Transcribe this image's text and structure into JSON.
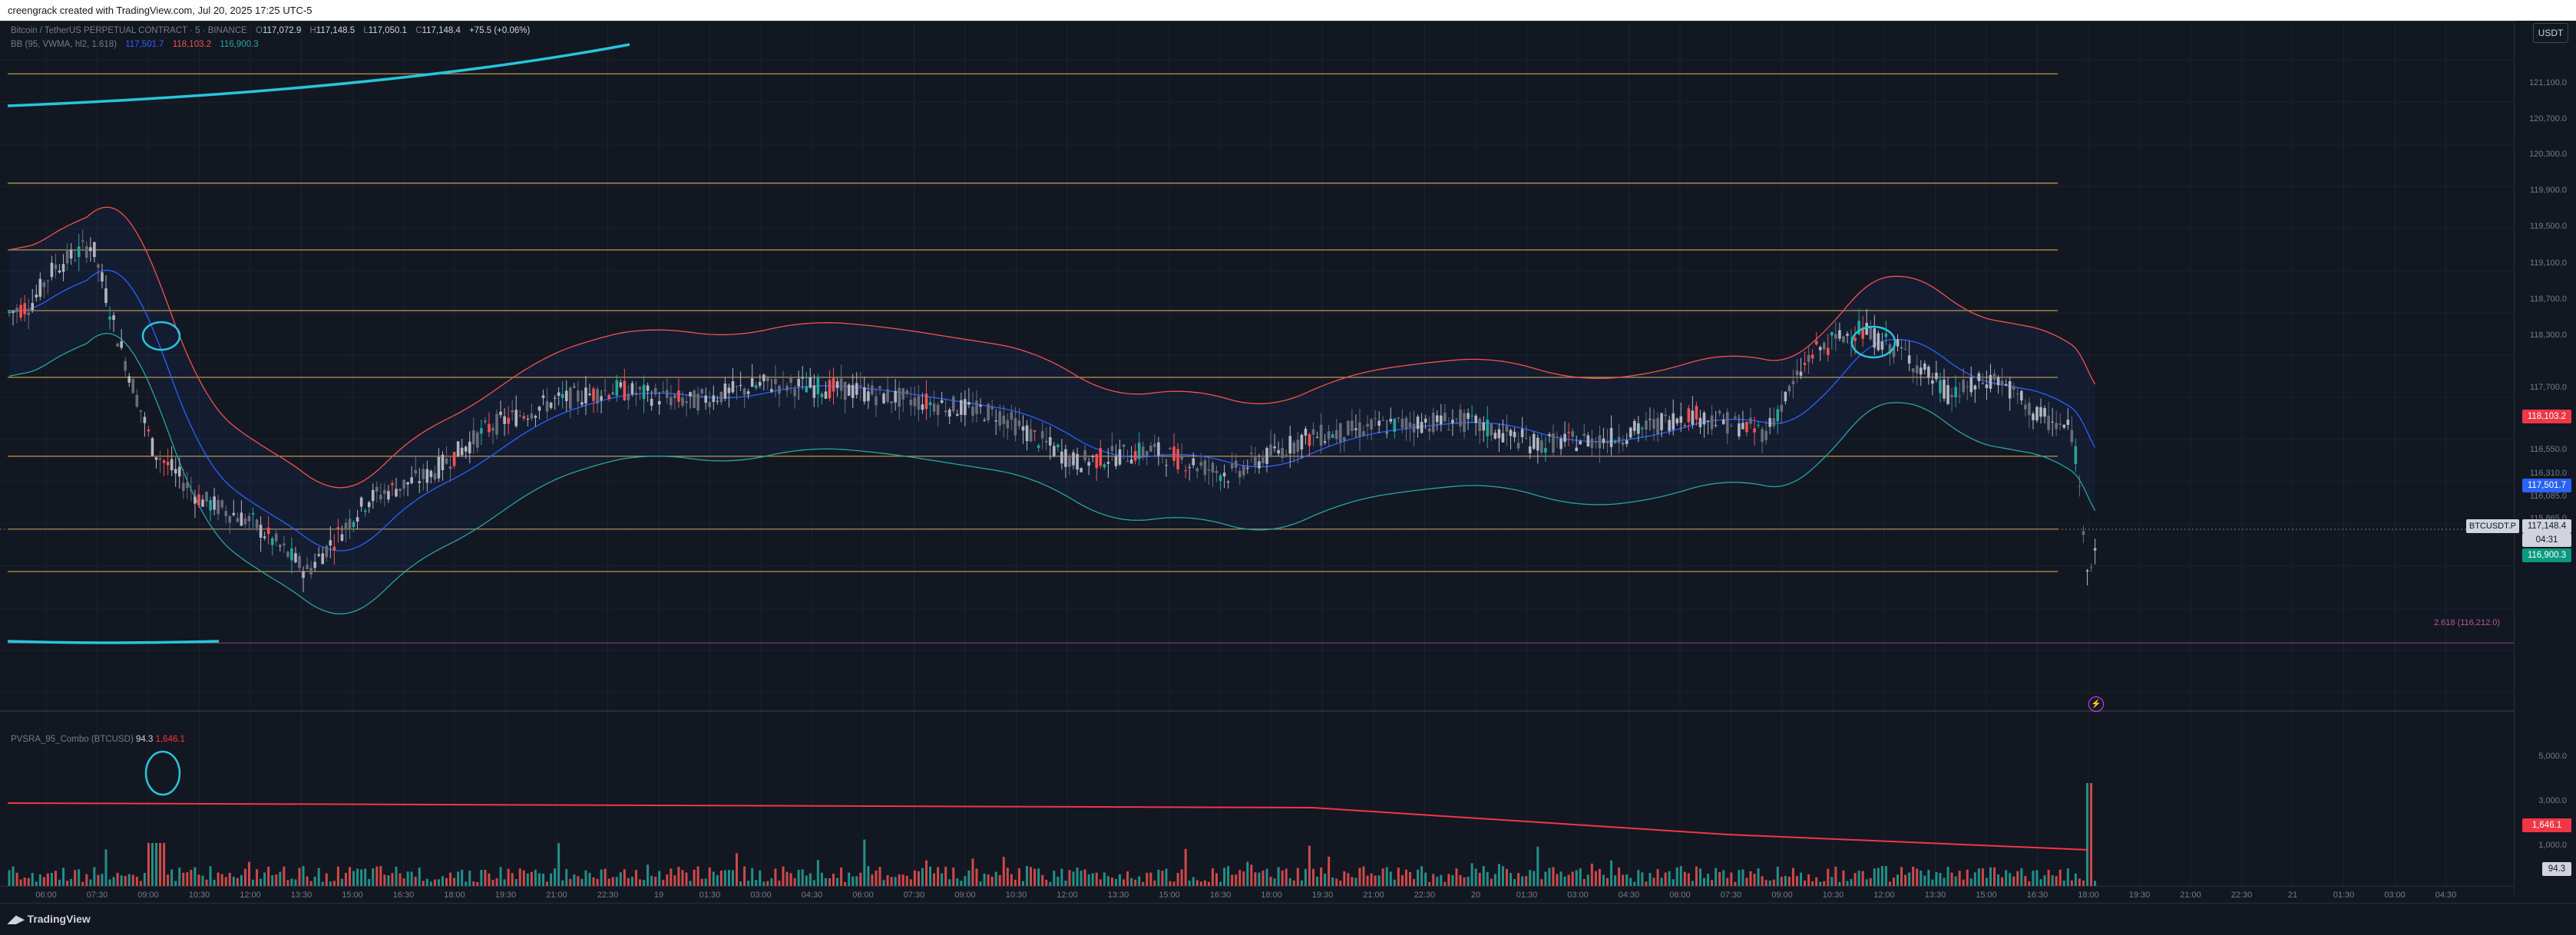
{
  "topbar": {
    "credit": "creengrack created with TradingView.com, Jul 20, 2025 17:25 UTC-5"
  },
  "legend": {
    "symbol": "Bitcoin / TetherUS PERPETUAL CONTRACT · 5 · BINANCE",
    "open": "117,072.9",
    "high": "117,148.5",
    "low": "117,050.1",
    "close": "117,148.4",
    "change": "+75.5 (+0.06%)",
    "bb_label": "BB (95, VWMA, hl2, 1.618)",
    "bb_basis": "117,501.7",
    "bb_upper": "118,103.2",
    "bb_lower": "116,900.3"
  },
  "volume_legend": {
    "name": "PVSRA_95_Combo (BTCUSD)",
    "value1": "94.3",
    "value2": "1,646.1"
  },
  "currency_button": "USDT",
  "price_axis": {
    "ticks": [
      "121,100.0",
      "120,700.0",
      "120,300.0",
      "119,900.0",
      "119,500.0",
      "119,100.0",
      "118,700.0",
      "118,300.0",
      "117,700.0",
      "116,550.0",
      "116,310.0",
      "116,085.0",
      "115,865.0",
      "115,645.0"
    ],
    "volume_ticks": [
      "5,000.0",
      "3,000.0",
      "1,000.0"
    ],
    "badges": {
      "upper": "118,103.2",
      "basis": "117,501.7",
      "symbol": "BTCUSDT.P",
      "last": "117,148.4",
      "countdown": "04:31",
      "lower": "116,900.3",
      "vol_upper": "1,646.1",
      "vol_lower": "94.3"
    }
  },
  "fib_label": "2.618 (116,212.0)",
  "time_axis": {
    "ticks": [
      "06:00",
      "07:30",
      "09:00",
      "10:30",
      "12:00",
      "13:30",
      "15:00",
      "16:30",
      "18:00",
      "19:30",
      "21:00",
      "22:30",
      "19",
      "01:30",
      "03:00",
      "04:30",
      "06:00",
      "07:30",
      "09:00",
      "10:30",
      "12:00",
      "13:30",
      "15:00",
      "16:30",
      "18:00",
      "19:30",
      "21:00",
      "22:30",
      "20",
      "01:30",
      "03:00",
      "04:30",
      "06:00",
      "07:30",
      "09:00",
      "10:30",
      "12:00",
      "13:30",
      "15:00",
      "16:30",
      "18:00",
      "19:30",
      "21:00",
      "22:30",
      "21",
      "01:30",
      "03:00",
      "04:30"
    ]
  },
  "footer": {
    "brand": "TradingView"
  },
  "colors": {
    "background": "#131722",
    "bull": "#26a69a",
    "bear": "#ef5350",
    "bb_upper": "#ef5350",
    "bb_basis": "#2962ff",
    "bb_lower": "#26a69a",
    "hline": "#c8a24a",
    "annotation": "#26c6da",
    "vol_line": "#f23645"
  },
  "chart_data": {
    "type": "candlestick",
    "price_range": [
      115645,
      121300
    ],
    "horizontal_levels": [
      120900,
      120000,
      119450,
      118950,
      118400,
      117750,
      117150,
      116800
    ],
    "fib_level": 116212.0,
    "last_price": 117148.4
  }
}
